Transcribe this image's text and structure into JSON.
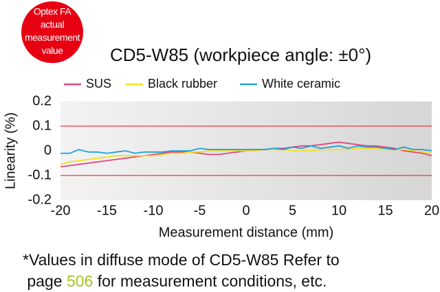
{
  "badge": {
    "lines": [
      "Optex FA",
      "actual",
      "measurement",
      "value"
    ]
  },
  "chart_data": {
    "type": "line",
    "title": "CD5-W85 (workpiece angle: ±0°)",
    "x_label": "Measurement distance (mm)",
    "y_label": "Linearity (%)",
    "xlim": [
      -20,
      20
    ],
    "ylim": [
      -0.2,
      0.2
    ],
    "xticks": [
      -20,
      -15,
      -10,
      -5,
      0,
      5,
      10,
      15,
      20
    ],
    "yticks": [
      0.2,
      0.1,
      0,
      -0.1,
      -0.2
    ],
    "reference_lines": {
      "color": "#e8383d",
      "values": [
        0.1,
        -0.1
      ]
    },
    "x": [
      -20,
      -19,
      -18,
      -17,
      -16,
      -15,
      -14,
      -13,
      -12,
      -11,
      -10,
      -9,
      -8,
      -7,
      -6,
      -5,
      -4,
      -3,
      -2,
      -1,
      0,
      1,
      2,
      3,
      4,
      5,
      6,
      7,
      8,
      9,
      10,
      11,
      12,
      13,
      14,
      15,
      16,
      17,
      18,
      19,
      20
    ],
    "series": [
      {
        "name": "SUS",
        "color": "#e2457f",
        "values": [
          -0.065,
          -0.06,
          -0.055,
          -0.05,
          -0.045,
          -0.04,
          -0.035,
          -0.03,
          -0.025,
          -0.02,
          -0.015,
          -0.01,
          -0.005,
          -0.005,
          -0.005,
          -0.01,
          -0.015,
          -0.015,
          -0.01,
          -0.005,
          0,
          0.005,
          0.005,
          0.01,
          0.01,
          0.015,
          0.02,
          0.02,
          0.025,
          0.03,
          0.035,
          0.03,
          0.025,
          0.02,
          0.02,
          0.015,
          0.01,
          0,
          -0.005,
          -0.01,
          -0.02
        ]
      },
      {
        "name": "Black rubber",
        "color": "#f3df1e",
        "values": [
          -0.055,
          -0.045,
          -0.04,
          -0.035,
          -0.03,
          -0.025,
          -0.02,
          -0.02,
          -0.02,
          -0.02,
          -0.02,
          -0.015,
          -0.01,
          -0.01,
          -0.005,
          -0.005,
          0,
          0,
          0,
          0,
          0,
          0,
          0.005,
          0.005,
          0.005,
          0,
          0,
          0,
          0.005,
          0.005,
          0.005,
          0.005,
          0.01,
          0.01,
          0.01,
          0.005,
          0.005,
          0.005,
          0,
          -0.005,
          -0.01
        ]
      },
      {
        "name": "White ceramic",
        "color": "#1ea1d9",
        "values": [
          -0.01,
          -0.01,
          0.005,
          -0.005,
          -0.005,
          -0.01,
          -0.005,
          0,
          -0.01,
          -0.005,
          -0.005,
          -0.005,
          0,
          0,
          0,
          0.01,
          0.005,
          0.005,
          0.005,
          0.005,
          0.005,
          0.005,
          0.005,
          0.01,
          0.005,
          0.015,
          0.01,
          0.02,
          0.01,
          0.015,
          0.02,
          0.01,
          0.02,
          0.015,
          0.015,
          0.01,
          0.005,
          0.015,
          0.005,
          0.005,
          0
        ]
      }
    ]
  },
  "footnote": {
    "line1": "*Values in diffuse mode of CD5-W85 Refer to",
    "line2": [
      " page ",
      "506",
      " for measurement conditions, etc."
    ]
  }
}
